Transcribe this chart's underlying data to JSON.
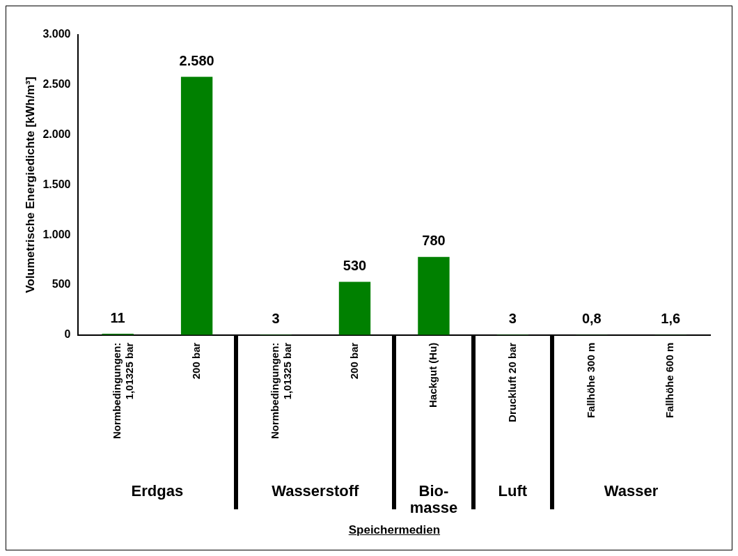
{
  "chart_data": {
    "type": "bar",
    "ylabel": "Volumetrische Energiedichte [kWh/m³]",
    "categories": [
      "Normbedingungen:\n1,01325 bar",
      "200 bar",
      "Normbedingungen:\n1,01325 bar",
      "200 bar",
      "Hackgut (Hu)",
      "Druckluft 20 bar",
      "Fallhöhe 300 m",
      "Fallhöhe 600 m"
    ],
    "values": [
      11,
      2580,
      3,
      530,
      780,
      3,
      0.8,
      1.6
    ],
    "value_labels": [
      "11",
      "2.580",
      "3",
      "530",
      "780",
      "3",
      "0,8",
      "1,6"
    ],
    "color": "#008000",
    "ylim": [
      0,
      3000
    ],
    "yticks": [
      {
        "value": 0,
        "label": "0"
      },
      {
        "value": 500,
        "label": "500"
      },
      {
        "value": 1000,
        "label": "1.000"
      },
      {
        "value": 1500,
        "label": "1.500"
      },
      {
        "value": 2000,
        "label": "2.000"
      },
      {
        "value": 2500,
        "label": "2.500"
      },
      {
        "value": 3000,
        "label": "3.000"
      }
    ],
    "annotations": [
      "Erdgas",
      "Wasserstoff",
      "Bio-\nmasse",
      "Luft",
      "Wasser",
      "Speichermedien"
    ],
    "grid": false,
    "legend": false
  }
}
